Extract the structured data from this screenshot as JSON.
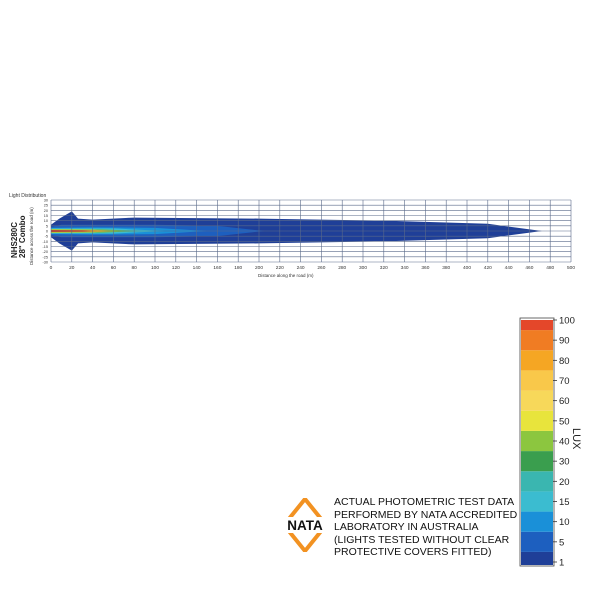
{
  "chart_data": {
    "type": "heatmap",
    "title": "Light Distribution",
    "product": [
      "NHS280C",
      "28\" Combo"
    ],
    "xlabel": "Distance along the road (m)",
    "ylabel": "Distance across the road (m)",
    "xlim": [
      0,
      500
    ],
    "ylim": [
      -30,
      30
    ],
    "xticks": [
      0,
      20,
      40,
      60,
      80,
      100,
      120,
      140,
      160,
      180,
      200,
      220,
      240,
      260,
      280,
      300,
      320,
      340,
      360,
      380,
      400,
      420,
      440,
      460,
      480,
      500
    ],
    "yticks": [
      30,
      25,
      20,
      15,
      10,
      5,
      0,
      -5,
      -10,
      -15,
      -20,
      -25,
      -30
    ],
    "grid": true,
    "contours": [
      {
        "lux": 1,
        "color": "#1f3f98",
        "reach_m": 472,
        "half_width_m": [
          [
            0,
            6
          ],
          [
            8,
            12
          ],
          [
            20,
            19
          ],
          [
            26,
            12
          ],
          [
            40,
            11
          ],
          [
            80,
            13
          ],
          [
            200,
            12
          ],
          [
            320,
            10
          ],
          [
            420,
            7
          ],
          [
            472,
            0
          ]
        ]
      },
      {
        "lux": 5,
        "color": "#1d5fbf",
        "reach_m": 205,
        "half_width_m": [
          [
            0,
            4
          ],
          [
            10,
            6
          ],
          [
            40,
            6
          ],
          [
            100,
            6
          ],
          [
            160,
            5
          ],
          [
            205,
            0
          ]
        ]
      },
      {
        "lux": 10,
        "color": "#1a90d8",
        "reach_m": 150,
        "half_width_m": [
          [
            0,
            3
          ],
          [
            40,
            3.5
          ],
          [
            100,
            3
          ],
          [
            150,
            0
          ]
        ]
      },
      {
        "lux": 20,
        "color": "#3bbcd0",
        "reach_m": 110,
        "half_width_m": [
          [
            0,
            2.5
          ],
          [
            60,
            2.5
          ],
          [
            110,
            0
          ]
        ]
      },
      {
        "lux": 40,
        "color": "#6dbf4a",
        "reach_m": 85,
        "half_width_m": [
          [
            0,
            1.8
          ],
          [
            50,
            1.6
          ],
          [
            85,
            0
          ]
        ]
      },
      {
        "lux": 60,
        "color": "#f2e61e",
        "reach_m": 65,
        "half_width_m": [
          [
            0,
            1.4
          ],
          [
            40,
            1.2
          ],
          [
            65,
            0
          ]
        ]
      },
      {
        "lux": 80,
        "color": "#f5a623",
        "reach_m": 50,
        "half_width_m": [
          [
            0,
            1.1
          ],
          [
            30,
            1
          ],
          [
            50,
            0
          ]
        ]
      },
      {
        "lux": 100,
        "color": "#c8281e",
        "reach_m": 60,
        "half_width_m": [
          [
            0,
            0.8
          ],
          [
            30,
            0.6
          ],
          [
            60,
            0
          ]
        ]
      }
    ],
    "legend": {
      "title": "LUX",
      "placement": "bottom-right",
      "levels": [
        1,
        5,
        10,
        15,
        20,
        30,
        40,
        50,
        60,
        70,
        80,
        90,
        100
      ],
      "colors": [
        "#1f3f98",
        "#1d5fbf",
        "#1a90d8",
        "#3bbcd0",
        "#3ab6b0",
        "#3a9e4e",
        "#8cc63f",
        "#e8e43c",
        "#f7d85a",
        "#f9c84a",
        "#f5a623",
        "#f07c23",
        "#e4472a"
      ]
    }
  },
  "nata": {
    "logo_text": "NATA",
    "lines": [
      "ACTUAL PHOTOMETRIC TEST DATA",
      "PERFORMED BY NATA ACCREDITED",
      " LABORATORY IN AUSTRALIA",
      "(LIGHTS TESTED WITHOUT CLEAR",
      " PROTECTIVE COVERS FITTED)"
    ]
  }
}
